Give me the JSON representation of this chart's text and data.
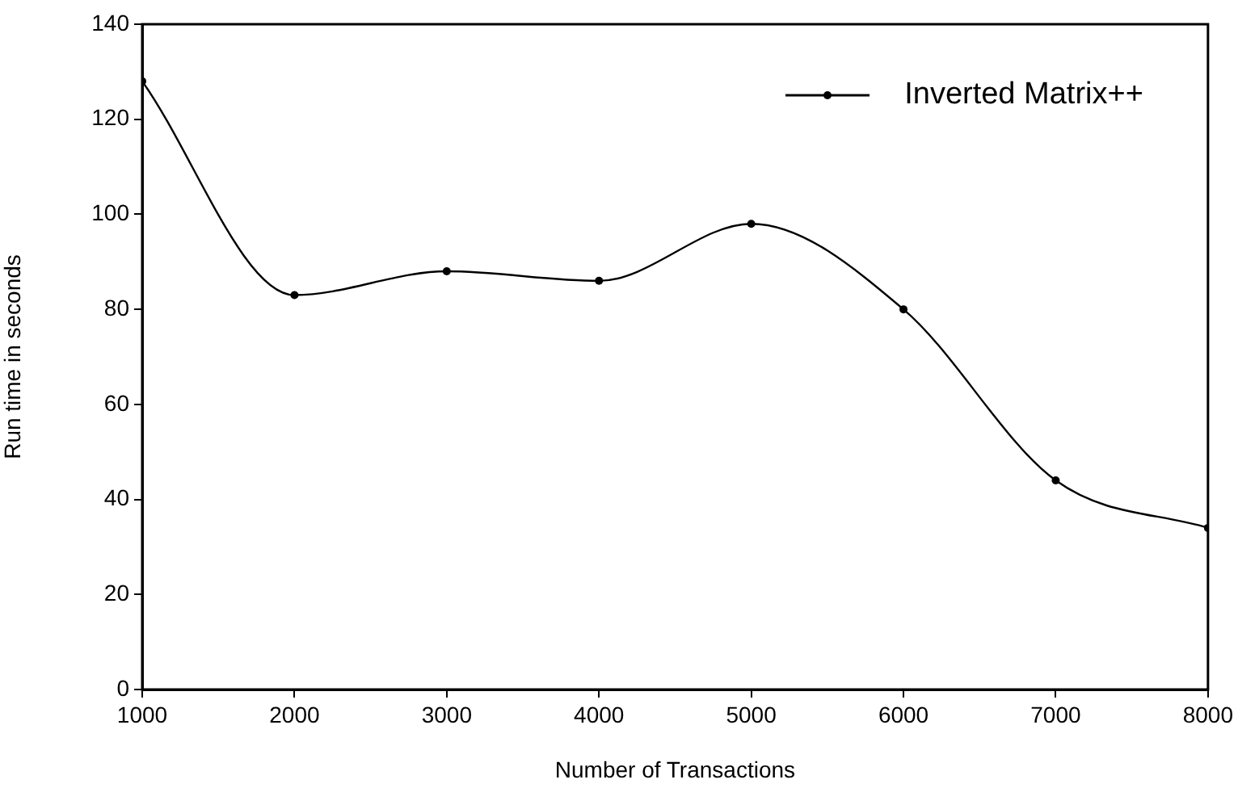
{
  "chart_data": {
    "type": "line",
    "xlabel": "Number of Transactions",
    "ylabel": "Run time in seconds",
    "x": [
      1000,
      2000,
      3000,
      4000,
      5000,
      6000,
      7000,
      8000
    ],
    "series": [
      {
        "name": "Inverted Matrix++",
        "color": "#000000",
        "values": [
          128,
          83,
          88,
          86,
          98,
          80,
          44,
          34
        ]
      }
    ],
    "xlim": [
      1000,
      8000
    ],
    "xticks": [
      1000,
      2000,
      3000,
      4000,
      5000,
      6000,
      7000,
      8000
    ],
    "ylim": [
      0,
      140
    ],
    "yticks": [
      0,
      20,
      40,
      60,
      80,
      100,
      120,
      140
    ],
    "grid": false,
    "legend": "top right",
    "marker": "circle",
    "line_style": "solid"
  }
}
